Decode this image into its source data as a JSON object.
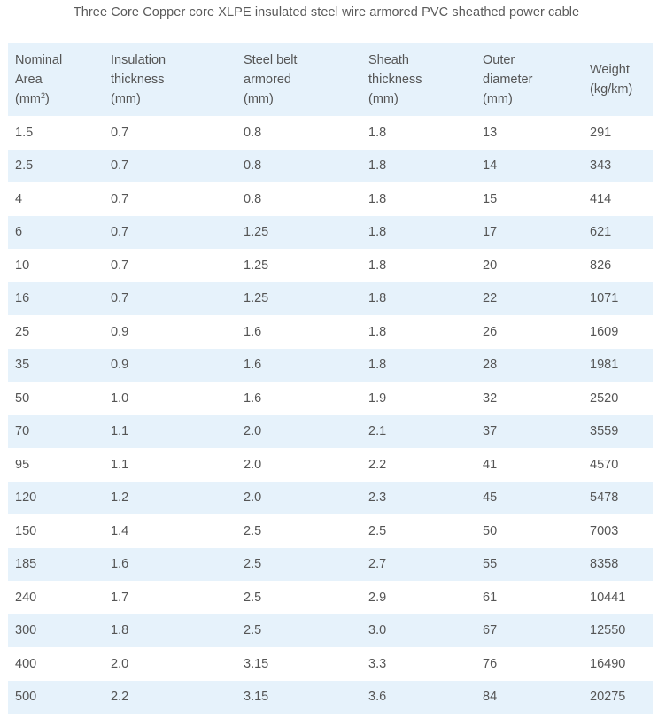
{
  "caption": "Three Core Copper core XLPE insulated steel wire armored PVC sheathed power cable",
  "table": {
    "headers": [
      [
        "Nominal",
        "Area",
        "(mm²)"
      ],
      [
        "Insulation",
        "thickness",
        "(mm)"
      ],
      [
        "Steel belt",
        "armored",
        "(mm)"
      ],
      [
        "Sheath",
        "thickness",
        "(mm)"
      ],
      [
        "Outer",
        "diameter",
        "(mm)"
      ],
      [
        "Weight",
        "(kg/km)"
      ]
    ],
    "rows": [
      [
        "1.5",
        "0.7",
        "0.8",
        "1.8",
        "13",
        "291"
      ],
      [
        "2.5",
        "0.7",
        "0.8",
        "1.8",
        "14",
        "343"
      ],
      [
        "4",
        "0.7",
        "0.8",
        "1.8",
        "15",
        "414"
      ],
      [
        "6",
        "0.7",
        "1.25",
        "1.8",
        "17",
        "621"
      ],
      [
        "10",
        "0.7",
        "1.25",
        "1.8",
        "20",
        "826"
      ],
      [
        "16",
        "0.7",
        "1.25",
        "1.8",
        "22",
        "1071"
      ],
      [
        "25",
        "0.9",
        "1.6",
        "1.8",
        "26",
        "1609"
      ],
      [
        "35",
        "0.9",
        "1.6",
        "1.8",
        "28",
        "1981"
      ],
      [
        "50",
        "1.0",
        "1.6",
        "1.9",
        "32",
        "2520"
      ],
      [
        "70",
        "1.1",
        "2.0",
        "2.1",
        "37",
        "3559"
      ],
      [
        "95",
        "1.1",
        "2.0",
        "2.2",
        "41",
        "4570"
      ],
      [
        "120",
        "1.2",
        "2.0",
        "2.3",
        "45",
        "5478"
      ],
      [
        "150",
        "1.4",
        "2.5",
        "2.5",
        "50",
        "7003"
      ],
      [
        "185",
        "1.6",
        "2.5",
        "2.7",
        "55",
        "8358"
      ],
      [
        "240",
        "1.7",
        "2.5",
        "2.9",
        "61",
        "10441"
      ],
      [
        "300",
        "1.8",
        "2.5",
        "3.0",
        "67",
        "12550"
      ],
      [
        "400",
        "2.0",
        "3.15",
        "3.3",
        "76",
        "16490"
      ],
      [
        "500",
        "2.2",
        "3.15",
        "3.6",
        "84",
        "20275"
      ]
    ]
  },
  "colors": {
    "header_bg": "#e6f2fb",
    "stripe_bg": "#e6f2fb",
    "text": "#555555"
  }
}
